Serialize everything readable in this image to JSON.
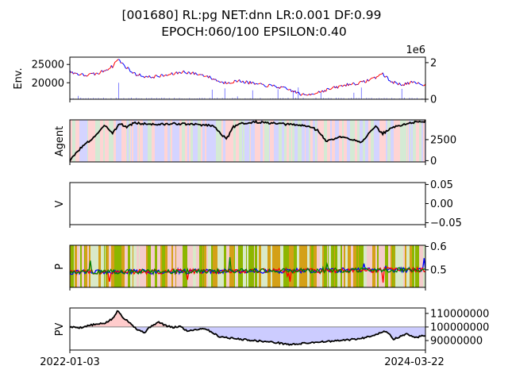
{
  "figure": {
    "title_line1": "[001680] RL:pg NET:dnn LR:0.001 DF:0.99",
    "title_line2": "EPOCH:060/100 EPSILON:0.40"
  },
  "chart_data": [
    {
      "id": "env",
      "type": "line",
      "ylabel": "Env.",
      "left_ticks": [
        "25000",
        "20000"
      ],
      "left_tick_values": [
        25000,
        20000
      ],
      "ylim_left": [
        15500,
        27000
      ],
      "right_ticks": [
        "2",
        "0"
      ],
      "right_tick_values": [
        2,
        0
      ],
      "right_offset_label": "1e6",
      "ylim_right": [
        0,
        2.3
      ],
      "series": [
        {
          "kind": "price",
          "color_up": "#ff0000",
          "color_down": "#0000ff",
          "x": [
            0,
            0.04,
            0.08,
            0.12,
            0.135,
            0.15,
            0.18,
            0.22,
            0.27,
            0.32,
            0.38,
            0.43,
            0.48,
            0.53,
            0.58,
            0.62,
            0.66,
            0.7,
            0.74,
            0.78,
            0.82,
            0.86,
            0.88,
            0.9,
            0.93,
            0.96,
            1.0
          ],
          "values": [
            23000,
            22000,
            22500,
            24500,
            26500,
            25000,
            22500,
            21500,
            22000,
            23000,
            22000,
            20000,
            20500,
            19500,
            19000,
            18000,
            16500,
            17500,
            18500,
            19500,
            20000,
            21500,
            22500,
            20500,
            19500,
            20000,
            19500
          ]
        },
        {
          "kind": "volume",
          "color": "#8080ff"
        }
      ]
    },
    {
      "id": "agent",
      "type": "line",
      "ylabel": "Agent",
      "right_ticks": [
        "2500",
        "0"
      ],
      "right_tick_values": [
        2500,
        0
      ],
      "ylim": [
        -150,
        4850
      ],
      "series": [
        {
          "name": "",
          "color": "#000000",
          "x": [
            0,
            0.03,
            0.06,
            0.1,
            0.12,
            0.14,
            0.16,
            0.18,
            0.2,
            0.25,
            0.3,
            0.35,
            0.4,
            0.42,
            0.44,
            0.46,
            0.48,
            0.5,
            0.52,
            0.55,
            0.58,
            0.62,
            0.65,
            0.68,
            0.7,
            0.72,
            0.76,
            0.8,
            0.82,
            0.84,
            0.86,
            0.88,
            0.9,
            0.92,
            0.94,
            0.96,
            0.98,
            1.0
          ],
          "values": [
            0,
            1500,
            2500,
            4200,
            3300,
            4400,
            4000,
            4500,
            4400,
            4300,
            4400,
            4300,
            4200,
            3500,
            2500,
            4000,
            4500,
            4400,
            4600,
            4500,
            4400,
            4300,
            4200,
            4000,
            3500,
            2300,
            2800,
            2500,
            2200,
            3200,
            4000,
            3200,
            3800,
            4100,
            4300,
            4500,
            4600,
            4700
          ]
        }
      ]
    },
    {
      "id": "v",
      "type": "line",
      "ylabel": "V",
      "right_ticks": [
        "0.05",
        "0.00",
        "−0.05"
      ],
      "right_tick_values": [
        0.05,
        0.0,
        -0.05
      ],
      "ylim": [
        -0.055,
        0.055
      ],
      "series": []
    },
    {
      "id": "p",
      "type": "line",
      "ylabel": "P",
      "right_ticks": [
        "0.6",
        "0.5"
      ],
      "right_tick_values": [
        0.6,
        0.5
      ],
      "ylim": [
        0.425,
        0.605
      ],
      "series": [
        {
          "name": "",
          "color": "#0000ff",
          "values_note": ""
        },
        {
          "name": "",
          "color": "#ff0000",
          "values_note": ""
        },
        {
          "name": "",
          "color": "#008000",
          "values_note": ""
        }
      ]
    },
    {
      "id": "pv",
      "type": "area",
      "ylabel": "PV",
      "right_ticks": [
        "110000000",
        "100000000",
        "90000000"
      ],
      "right_tick_values": [
        110000000,
        100000000,
        90000000
      ],
      "ylim": [
        83000000,
        114000000
      ],
      "baseline": 100000000,
      "x_ticks": [
        "2022-01-03",
        "2024-03-22"
      ],
      "series": [
        {
          "name": "",
          "color": "#000000",
          "x": [
            0,
            0.03,
            0.06,
            0.08,
            0.1,
            0.12,
            0.135,
            0.15,
            0.17,
            0.19,
            0.21,
            0.23,
            0.25,
            0.27,
            0.29,
            0.31,
            0.33,
            0.35,
            0.38,
            0.42,
            0.46,
            0.5,
            0.54,
            0.58,
            0.62,
            0.66,
            0.7,
            0.74,
            0.78,
            0.82,
            0.86,
            0.89,
            0.91,
            0.93,
            0.95,
            0.97,
            1.0
          ],
          "values": [
            100000000,
            99500000,
            101500000,
            102000000,
            103000000,
            106000000,
            112000000,
            107000000,
            103000000,
            98000000,
            96000000,
            101000000,
            103500000,
            101000000,
            99500000,
            100500000,
            97000000,
            98000000,
            99000000,
            93000000,
            91500000,
            90500000,
            89500000,
            88500000,
            87000000,
            88000000,
            89000000,
            89500000,
            90500000,
            91500000,
            94500000,
            97000000,
            91000000,
            93000000,
            95000000,
            92000000,
            94000000
          ]
        }
      ],
      "fill_above_color": "#ffcccc",
      "fill_below_color": "#ccccff"
    }
  ]
}
